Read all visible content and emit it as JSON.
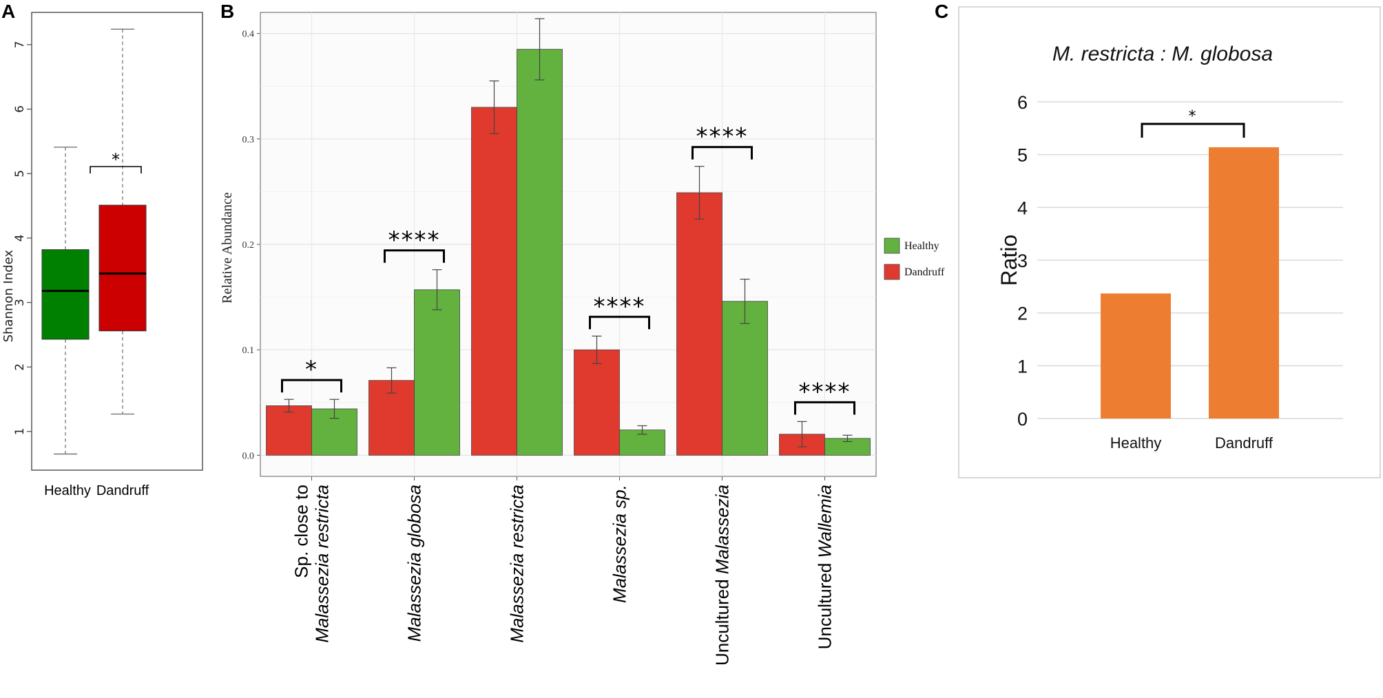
{
  "panels": {
    "a": "A",
    "b": "B",
    "c": "C"
  },
  "chart_data": [
    {
      "type": "box",
      "panel": "A",
      "ylabel": "Shannon Index",
      "ylim": [
        0.4,
        7.5
      ],
      "yticks": [
        1,
        2,
        3,
        4,
        5,
        6,
        7
      ],
      "categories": [
        "Healthy",
        "Dandruff"
      ],
      "colors": [
        "#008000",
        "#cc0000"
      ],
      "boxes": [
        {
          "min": 0.65,
          "q1": 2.43,
          "median": 3.18,
          "q3": 3.82,
          "max": 5.41
        },
        {
          "min": 1.27,
          "q1": 2.56,
          "median": 3.45,
          "q3": 4.51,
          "max": 7.24
        }
      ],
      "significance": {
        "label": "*",
        "between": [
          0,
          1
        ]
      }
    },
    {
      "type": "bar",
      "panel": "B",
      "ylabel": "Relative Abundance",
      "ylim": [
        -0.02,
        0.42
      ],
      "yticks": [
        "0.0",
        "0.1",
        "0.2",
        "0.3",
        "0.4"
      ],
      "grid": true,
      "categories": [
        {
          "line1": "Sp. close to",
          "line2_italic": "Malassezia restricta"
        },
        {
          "line1_italic": "Malassezia globosa"
        },
        {
          "line1_italic": "Malassezia restricta"
        },
        {
          "line1_italic": "Malassezia sp."
        },
        {
          "line1": "Uncultured ",
          "line1_italic": "Malassezia"
        },
        {
          "line1": "Uncultured ",
          "line1_italic": "Wallemia"
        }
      ],
      "series": [
        {
          "name": "Dandruff",
          "color": "#e03a2f",
          "values": [
            0.047,
            0.071,
            0.33,
            0.1,
            0.249,
            0.02
          ],
          "errors": [
            0.006,
            0.012,
            0.025,
            0.013,
            0.025,
            0.012
          ]
        },
        {
          "name": "Healthy",
          "color": "#63b13f",
          "values": [
            0.044,
            0.157,
            0.385,
            0.024,
            0.146,
            0.016
          ],
          "errors": [
            0.009,
            0.019,
            0.029,
            0.004,
            0.021,
            0.003
          ]
        }
      ],
      "legend": [
        "Healthy",
        "Dandruff"
      ],
      "legend_position": "right",
      "significance": [
        "*",
        "****",
        "",
        "****",
        "****",
        "****"
      ]
    },
    {
      "type": "bar",
      "panel": "C",
      "title": "M. restricta : M. globosa",
      "ylabel": "Ratio",
      "ylim": [
        0,
        6
      ],
      "yticks": [
        0,
        1,
        2,
        3,
        4,
        5,
        6
      ],
      "categories": [
        "Healthy",
        "Dandruff"
      ],
      "values": [
        2.37,
        5.14
      ],
      "color": "#ed7d31",
      "significance": {
        "label": "*",
        "between": [
          0,
          1
        ]
      }
    }
  ]
}
